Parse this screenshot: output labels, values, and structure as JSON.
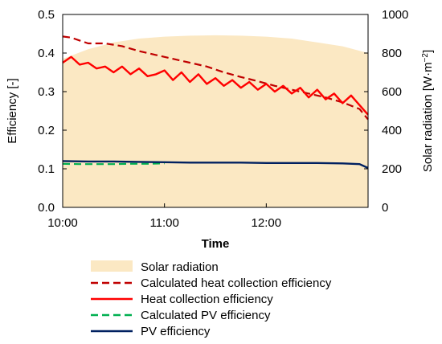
{
  "chart_data": {
    "type": "line",
    "xlabel": "Time",
    "ylabel_left": "Efficiency [-]",
    "ylabel_right_main": "Solar radiation [W·m",
    "ylabel_right_sup": "−2",
    "ylabel_right_close": "]",
    "x_range": [
      "10:00",
      "13:00"
    ],
    "x_ticks": [
      "10:00",
      "11:00",
      "12:00"
    ],
    "y_left_range": [
      0,
      0.5
    ],
    "y_left_ticks": [
      "0.0",
      "0.1",
      "0.2",
      "0.3",
      "0.4",
      "0.5"
    ],
    "y_right_range": [
      0,
      1000
    ],
    "y_right_ticks": [
      "0",
      "200",
      "400",
      "600",
      "800",
      "1000"
    ],
    "legend": [
      {
        "label": "Solar radiation",
        "style": "area",
        "color": "#fbe8c3"
      },
      {
        "label": "Calculated heat collection efficiency",
        "style": "dashed",
        "color": "#c00000"
      },
      {
        "label": "Heat collection efficiency",
        "style": "solid",
        "color": "#ff0000"
      },
      {
        "label": "Calculated PV efficiency",
        "style": "dashed",
        "color": "#00b050"
      },
      {
        "label": "PV efficiency",
        "style": "solid",
        "color": "#002060"
      }
    ],
    "series": [
      {
        "name": "Solar radiation",
        "axis": "right",
        "x": [
          "10:00",
          "10:15",
          "10:30",
          "10:45",
          "11:00",
          "11:15",
          "11:30",
          "11:45",
          "12:00",
          "12:15",
          "12:30",
          "12:45",
          "13:00"
        ],
        "values": [
          770,
          820,
          855,
          875,
          885,
          890,
          892,
          890,
          885,
          875,
          855,
          835,
          800
        ]
      },
      {
        "name": "Calculated heat collection efficiency",
        "axis": "left",
        "x": [
          "10:00",
          "10:05",
          "10:15",
          "10:25",
          "10:35",
          "10:45",
          "10:55",
          "11:05",
          "11:15",
          "11:25",
          "11:35",
          "11:45",
          "11:55",
          "12:05",
          "12:15",
          "12:25",
          "12:35",
          "12:45",
          "12:55",
          "13:00"
        ],
        "values": [
          0.443,
          0.44,
          0.425,
          0.425,
          0.418,
          0.405,
          0.395,
          0.385,
          0.375,
          0.365,
          0.35,
          0.338,
          0.327,
          0.315,
          0.305,
          0.295,
          0.285,
          0.272,
          0.255,
          0.228
        ]
      },
      {
        "name": "Heat collection efficiency",
        "axis": "left",
        "x": [
          "10:00",
          "10:05",
          "10:10",
          "10:15",
          "10:20",
          "10:25",
          "10:30",
          "10:35",
          "10:40",
          "10:45",
          "10:50",
          "10:55",
          "11:00",
          "11:05",
          "11:10",
          "11:15",
          "11:20",
          "11:25",
          "11:30",
          "11:35",
          "11:40",
          "11:45",
          "11:50",
          "11:55",
          "12:00",
          "12:05",
          "12:10",
          "12:15",
          "12:20",
          "12:25",
          "12:30",
          "12:35",
          "12:40",
          "12:45",
          "12:50",
          "12:55",
          "13:00"
        ],
        "values": [
          0.375,
          0.39,
          0.37,
          0.375,
          0.36,
          0.365,
          0.35,
          0.365,
          0.345,
          0.36,
          0.34,
          0.345,
          0.355,
          0.33,
          0.35,
          0.325,
          0.345,
          0.32,
          0.335,
          0.315,
          0.33,
          0.31,
          0.325,
          0.305,
          0.32,
          0.3,
          0.315,
          0.295,
          0.31,
          0.285,
          0.305,
          0.28,
          0.295,
          0.27,
          0.29,
          0.265,
          0.24
        ]
      },
      {
        "name": "Calculated PV efficiency",
        "axis": "left",
        "x": [
          "10:00",
          "10:10",
          "10:20",
          "10:30",
          "10:40",
          "10:50",
          "11:00"
        ],
        "values": [
          0.113,
          0.112,
          0.112,
          0.112,
          0.113,
          0.113,
          0.114
        ]
      },
      {
        "name": "PV efficiency",
        "axis": "left",
        "x": [
          "10:00",
          "10:15",
          "10:30",
          "10:45",
          "11:00",
          "11:15",
          "11:30",
          "11:45",
          "12:00",
          "12:15",
          "12:30",
          "12:45",
          "12:55",
          "13:00"
        ],
        "values": [
          0.12,
          0.119,
          0.119,
          0.118,
          0.117,
          0.116,
          0.116,
          0.116,
          0.115,
          0.115,
          0.115,
          0.114,
          0.112,
          0.102
        ]
      }
    ],
    "grid": false,
    "legend_position": "bottom"
  }
}
